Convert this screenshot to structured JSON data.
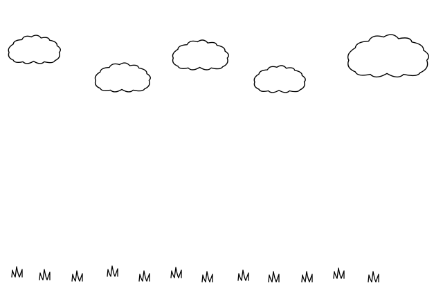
{
  "scene": {
    "description_colors": {
      "background": "#ffffff",
      "line": "#000000"
    },
    "clouds": [
      {
        "icon": "cloud-icon"
      },
      {
        "icon": "cloud-icon"
      },
      {
        "icon": "cloud-icon"
      },
      {
        "icon": "cloud-icon"
      },
      {
        "icon": "cloud-icon"
      },
      {
        "icon": "cloud-icon"
      }
    ],
    "grass_tufts": [
      {
        "icon": "grass-tuft-icon"
      },
      {
        "icon": "grass-tuft-icon"
      },
      {
        "icon": "grass-tuft-icon"
      },
      {
        "icon": "grass-tuft-icon"
      },
      {
        "icon": "grass-tuft-icon"
      },
      {
        "icon": "grass-tuft-icon"
      },
      {
        "icon": "grass-tuft-icon"
      },
      {
        "icon": "grass-tuft-icon"
      },
      {
        "icon": "grass-tuft-icon"
      },
      {
        "icon": "grass-tuft-icon"
      },
      {
        "icon": "grass-tuft-icon"
      },
      {
        "icon": "grass-tuft-icon"
      }
    ]
  }
}
